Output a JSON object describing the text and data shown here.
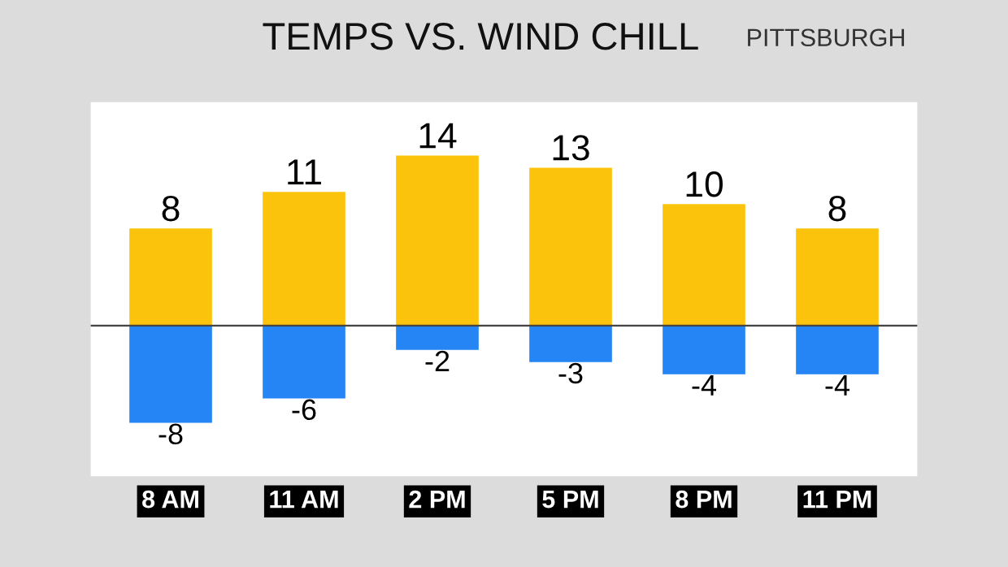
{
  "chart_data": {
    "type": "bar",
    "title": "TEMPS VS. WIND CHILL",
    "subtitle": "PITTSBURGH",
    "data_labels": true,
    "stacked": true,
    "categories": [
      "8 AM",
      "11 AM",
      "2 PM",
      "5 PM",
      "8 PM",
      "11 PM"
    ],
    "series": [
      {
        "color": "#fbc30c",
        "values": [
          8,
          11,
          14,
          13,
          10,
          8
        ]
      },
      {
        "color": "#2585f5",
        "values": [
          -8,
          -6,
          -2,
          -3,
          -4,
          -4
        ]
      }
    ],
    "grid": false
  }
}
